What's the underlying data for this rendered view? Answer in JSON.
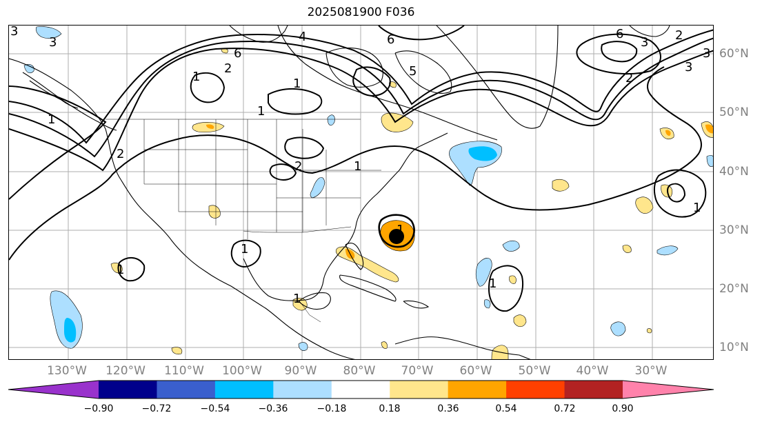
{
  "title": "2025081900 F036",
  "longitude_labels": [
    "130°W",
    "120°W",
    "110°W",
    "100°W",
    "90°W",
    "80°W",
    "70°W",
    "60°W",
    "50°W",
    "40°W",
    "30°W"
  ],
  "latitude_labels": [
    "60°N",
    "50°N",
    "40°N",
    "30°N",
    "20°N",
    "10°N"
  ],
  "contour_labels": [
    "3",
    "1",
    "2",
    "6",
    "4",
    "1",
    "6",
    "5",
    "1",
    "1",
    "2",
    "2",
    "3",
    "1",
    "6",
    "3",
    "2",
    "1",
    "1",
    "3",
    "2",
    "1",
    "1",
    "1",
    "1"
  ],
  "colorbar": {
    "tick_labels": [
      "−0.90",
      "−0.72",
      "−0.54",
      "−0.36",
      "−0.18",
      "0.18",
      "0.36",
      "0.54",
      "0.72",
      "0.90"
    ],
    "colors": [
      "#9932CC",
      "#00008B",
      "#3A5FCD",
      "#00BFFF",
      "#ADDFFF",
      "#FFFFFF",
      "#FFE68C",
      "#FFA500",
      "#FF4000",
      "#B22222",
      "#FF82AB"
    ]
  },
  "colors": {
    "coast": "#000000",
    "gridline": "#999999",
    "contour": "#000000",
    "pos_light": "#FFE68C",
    "pos_mid": "#FFA500",
    "neg_light": "#ADDFFF",
    "neg_mid": "#00BFFF"
  }
}
